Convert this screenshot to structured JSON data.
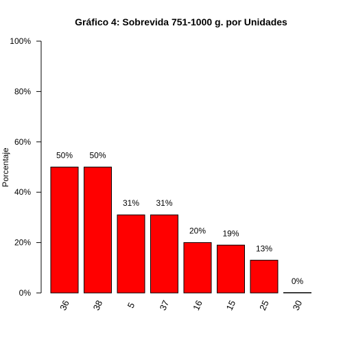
{
  "chart_data": {
    "type": "bar",
    "title": "Gráfico 4: Sobrevida 751-1000 g. por Unidades",
    "xlabel": "",
    "ylabel": "Porcentaje",
    "categories": [
      "36",
      "38",
      "5",
      "37",
      "16",
      "15",
      "25",
      "30"
    ],
    "values": [
      50,
      50,
      31,
      31,
      20,
      19,
      13,
      0
    ],
    "data_labels": [
      "50%",
      "50%",
      "31%",
      "31%",
      "20%",
      "19%",
      "13%",
      "0%"
    ],
    "ylim": [
      0,
      100
    ],
    "yticks": [
      0,
      20,
      40,
      60,
      80,
      100
    ],
    "ytick_labels": [
      "0%",
      "20%",
      "40%",
      "60%",
      "80%",
      "100%"
    ],
    "bar_color": "#ff0000",
    "grid": false,
    "legend": "none"
  }
}
